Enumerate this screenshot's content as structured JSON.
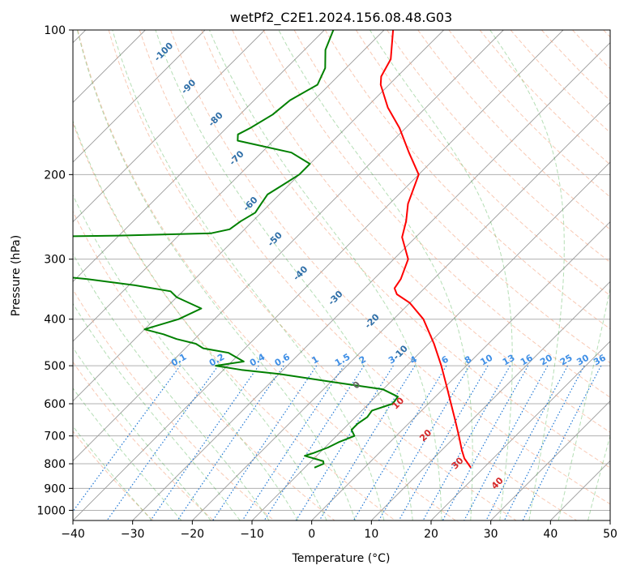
{
  "chart_data": {
    "type": "line",
    "title": "wetPf2_C2E1.2024.156.08.48.G03",
    "xlabel": "Temperature (°C)",
    "ylabel": "Pressure (hPa)",
    "xlim": [
      -40,
      50
    ],
    "ylim": [
      1050,
      100
    ],
    "y_scale": "log",
    "skew_degrees": 45,
    "grid": true,
    "x_ticks": [
      "−40",
      "−30",
      "−20",
      "−10",
      "0",
      "10",
      "20",
      "30",
      "40",
      "50"
    ],
    "x_tick_values": [
      -40,
      -30,
      -20,
      -10,
      0,
      10,
      20,
      30,
      40,
      50
    ],
    "y_ticks": [
      "100",
      "200",
      "300",
      "400",
      "500",
      "600",
      "700",
      "800",
      "900",
      "1000"
    ],
    "y_tick_values": [
      100,
      200,
      300,
      400,
      500,
      600,
      700,
      800,
      900,
      1000
    ],
    "series": [
      {
        "color": "#ff0000",
        "p": [
          815,
          800,
          780,
          750,
          700,
          650,
          600,
          550,
          500,
          450,
          400,
          370,
          355,
          345,
          330,
          300,
          270,
          250,
          230,
          200,
          180,
          160,
          145,
          130,
          125,
          115,
          100
        ],
        "t": [
          17.8,
          16.7,
          15.2,
          13.4,
          10.5,
          7.3,
          3.8,
          0.0,
          -4.2,
          -9.1,
          -15.0,
          -20.0,
          -23.6,
          -25.0,
          -25.5,
          -27.6,
          -32.3,
          -34.3,
          -36.9,
          -40.0,
          -45.3,
          -51.0,
          -56.4,
          -61.4,
          -62.7,
          -64.0,
          -68.5
        ]
      },
      {
        "color": "#008000",
        "p": [
          815,
          800,
          790,
          780,
          770,
          760,
          740,
          720,
          700,
          680,
          660,
          640,
          620,
          600,
          580,
          560,
          540,
          520,
          510,
          500,
          490,
          480,
          470,
          460,
          450,
          440,
          430,
          420,
          400,
          380,
          360,
          350,
          340,
          330,
          320,
          310,
          300,
          290,
          280,
          270,
          268,
          265,
          260,
          250,
          240,
          230,
          220,
          210,
          200,
          190,
          180,
          170,
          165,
          160,
          150,
          140,
          130,
          120,
          110,
          100
        ],
        "t": [
          -8.4,
          -7.5,
          -8.0,
          -10.0,
          -12.0,
          -11.0,
          -9.5,
          -8.5,
          -7.0,
          -8.5,
          -8.5,
          -8.0,
          -8.3,
          -6.0,
          -6.3,
          -10.0,
          -20.0,
          -30.0,
          -37.0,
          -42.0,
          -38.0,
          -40.0,
          -42.0,
          -47.0,
          -49.0,
          -53.0,
          -56.0,
          -60.0,
          -56.0,
          -54.0,
          -60.0,
          -62.0,
          -69.0,
          -78.0,
          -90.0,
          -100.0,
          -100.0,
          -100.0,
          -100.0,
          -100.0,
          -80.0,
          -65.0,
          -62.5,
          -62.0,
          -61.0,
          -61.5,
          -62.0,
          -61.0,
          -60.0,
          -60.0,
          -65.0,
          -76.0,
          -77.0,
          -76.0,
          -74.5,
          -74.0,
          -72.0,
          -73.5,
          -76.5,
          -78.5
        ]
      }
    ],
    "dry_adiabat_labels": [
      "-100",
      "-90",
      "-80",
      "-70",
      "-60",
      "-50",
      "-40",
      "-30",
      "-20",
      "-10"
    ],
    "mixing_ratio_labels": [
      "0.1",
      "0.2",
      "0.4",
      "0.6",
      "1",
      "1.5",
      "2",
      "3",
      "4",
      "6",
      "8",
      "10",
      "13",
      "16",
      "20",
      "25",
      "30",
      "36"
    ],
    "moist_adiabat_labels": [
      "0",
      "10",
      "20",
      "30",
      "40"
    ]
  }
}
